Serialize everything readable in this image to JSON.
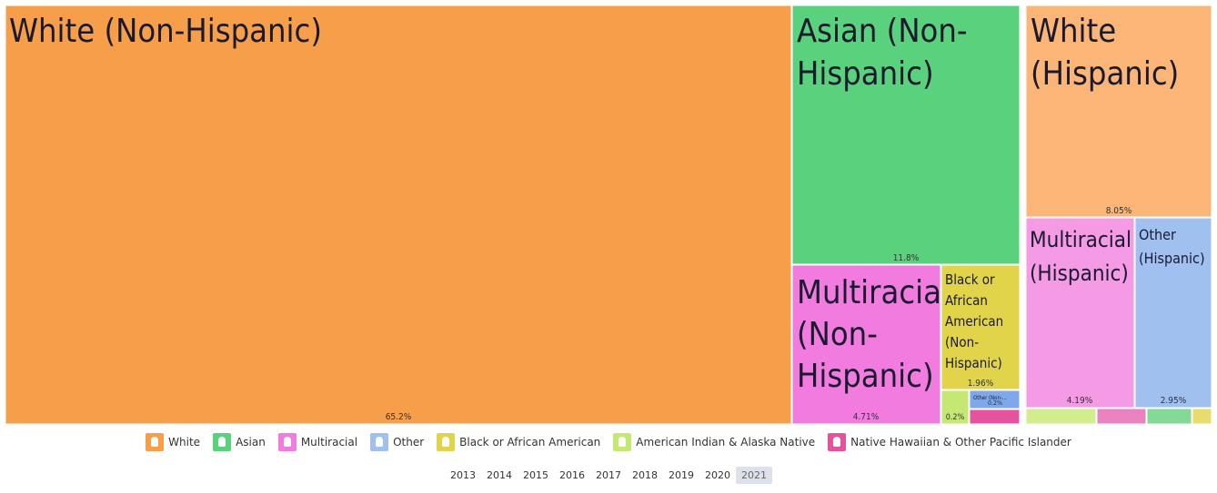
{
  "chart_data": {
    "type": "treemap",
    "groups": [
      {
        "name": "Non-Hispanic",
        "items": [
          {
            "label": "White (Non-Hispanic)",
            "value": 65.2,
            "value_label": "65.2%",
            "race": "white"
          },
          {
            "label": "Asian (Non-Hispanic)",
            "value": 11.8,
            "value_label": "11.8%",
            "race": "asian"
          },
          {
            "label": "Multiracial (Non-Hispanic)",
            "value": 4.71,
            "value_label": "4.71%",
            "race": "multiracial"
          },
          {
            "label": "Black or African American (Non-Hispanic)",
            "value": 1.96,
            "value_label": "1.96%",
            "race": "black"
          },
          {
            "label": "",
            "value": 0.2,
            "value_label": "0.2%",
            "race": "aian"
          },
          {
            "label": "Other (Non-Hispanic)",
            "value": 0.2,
            "value_label": "0.2%",
            "race": "other"
          },
          {
            "label": "",
            "value": 0.3,
            "value_label": "",
            "race": "nhpi"
          }
        ]
      },
      {
        "name": "Hispanic",
        "items": [
          {
            "label": "White (Hispanic)",
            "value": 8.05,
            "value_label": "8.05%",
            "race": "white"
          },
          {
            "label": "Multiracial (Hispanic)",
            "value": 4.19,
            "value_label": "4.19%",
            "race": "multiracial"
          },
          {
            "label": "Other (Hispanic)",
            "value": 2.95,
            "value_label": "2.95%",
            "race": "other"
          },
          {
            "label": "",
            "value": 0.5,
            "value_label": "",
            "race": "aian"
          },
          {
            "label": "",
            "value": 0.35,
            "value_label": "",
            "race": "nhpi"
          },
          {
            "label": "",
            "value": 0.3,
            "value_label": "",
            "race": "asian"
          },
          {
            "label": "",
            "value": 0.15,
            "value_label": "",
            "race": "black"
          }
        ]
      }
    ]
  },
  "colors": {
    "white": "#f79e4a",
    "white_light": "#fbb677",
    "asian": "#5ad17d",
    "asian_light": "#82da96",
    "multiracial": "#f27bdf",
    "multiracial_light": "#f59ae5",
    "other": "#a0c0f0",
    "other_dark": "#7fa8ea",
    "black": "#e2d44a",
    "black_light": "#e8dc6a",
    "aian": "#c5e875",
    "aian_light": "#d3ed8e",
    "nhpi": "#e5539f",
    "nhpi_light": "#ea82bf"
  },
  "legend": [
    {
      "label": "White",
      "color": "#f79e4a"
    },
    {
      "label": "Asian",
      "color": "#5ad17d"
    },
    {
      "label": "Multiracial",
      "color": "#f27bdf"
    },
    {
      "label": "Other",
      "color": "#a0c0f0"
    },
    {
      "label": "Black or African American",
      "color": "#e2d44a"
    },
    {
      "label": "American Indian & Alaska Native",
      "color": "#c5e875"
    },
    {
      "label": "Native Hawaiian & Other Pacific Islander",
      "color": "#e5539f"
    }
  ],
  "years": [
    "2013",
    "2014",
    "2015",
    "2016",
    "2017",
    "2018",
    "2019",
    "2020",
    "2021"
  ],
  "selected_year": "2021"
}
